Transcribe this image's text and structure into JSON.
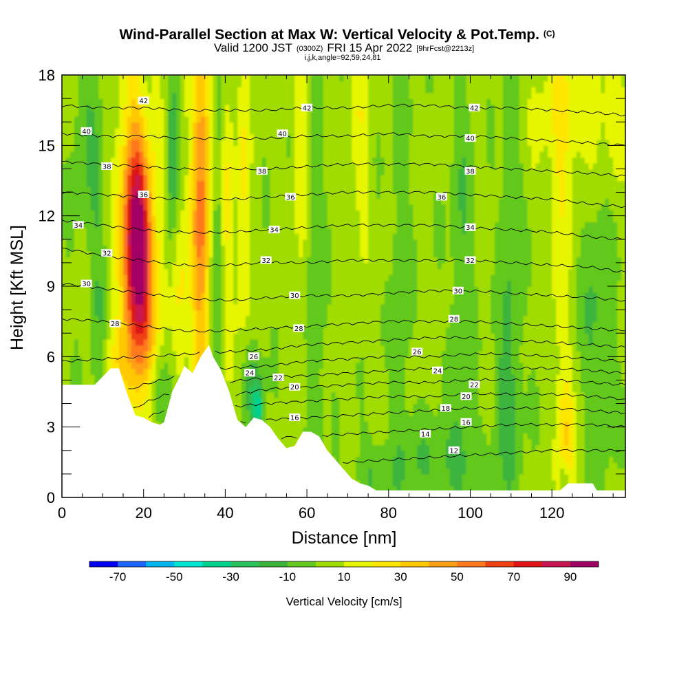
{
  "header": {
    "title": "Wind-Parallel Section at Max W: Vertical Velocity & Pot.Temp.",
    "title_unit": "(C)",
    "valid_pre": "Valid 1200 JST",
    "valid_utc": "(0300Z)",
    "valid_date": "FRI 15 Apr 2022",
    "forecast": "[9hrFcst@2213z]",
    "grid_info": "i,j,k,angle=92,59,24,81"
  },
  "chart_data": {
    "type": "heatmap",
    "xlabel": "Distance [nm]",
    "ylabel": "Height [Kft MSL]",
    "xlim": [
      0,
      138
    ],
    "ylim": [
      0,
      18
    ],
    "x_ticks": [
      0,
      20,
      40,
      60,
      80,
      100,
      120
    ],
    "y_ticks": [
      0,
      3,
      6,
      9,
      12,
      15,
      18
    ],
    "colorbar": {
      "title": "Vertical Velocity [cm/s]",
      "levels": [
        -80,
        -70,
        -60,
        -50,
        -40,
        -30,
        -20,
        -10,
        0,
        10,
        20,
        30,
        40,
        50,
        60,
        70,
        80,
        90,
        100
      ],
      "colors": [
        "#0000ee",
        "#1e64ff",
        "#00b4f0",
        "#00e6d2",
        "#00d28c",
        "#28c35a",
        "#3cb43c",
        "#64c81e",
        "#a0dc00",
        "#e6f500",
        "#ffe600",
        "#ffc800",
        "#ffa014",
        "#ff781e",
        "#f04014",
        "#dc1414",
        "#c81450",
        "#a00064"
      ],
      "tick_labels": [
        "-70",
        "-50",
        "-30",
        "-10",
        "10",
        "30",
        "50",
        "70",
        "90"
      ],
      "tick_values": [
        -70,
        -50,
        -30,
        -10,
        10,
        30,
        50,
        70,
        90
      ]
    },
    "terrain_top_kft": [
      [
        0,
        4.8
      ],
      [
        6,
        4.8
      ],
      [
        8,
        4.8
      ],
      [
        12,
        5.5
      ],
      [
        14,
        5.5
      ],
      [
        16,
        4.4
      ],
      [
        18,
        3.5
      ],
      [
        20,
        3.4
      ],
      [
        22,
        3.2
      ],
      [
        24,
        3.1
      ],
      [
        25,
        3.2
      ],
      [
        27,
        4.5
      ],
      [
        29,
        5.2
      ],
      [
        30,
        5.6
      ],
      [
        32,
        5.3
      ],
      [
        34,
        6.0
      ],
      [
        36,
        6.5
      ],
      [
        37,
        6.0
      ],
      [
        39,
        5.4
      ],
      [
        41,
        4.5
      ],
      [
        43,
        3.3
      ],
      [
        45,
        3.0
      ],
      [
        47,
        3.4
      ],
      [
        49,
        3.3
      ],
      [
        51,
        3.0
      ],
      [
        53,
        2.5
      ],
      [
        55,
        2.1
      ],
      [
        57,
        2.2
      ],
      [
        59,
        2.8
      ],
      [
        61,
        2.8
      ],
      [
        63,
        2.6
      ],
      [
        65,
        2.0
      ],
      [
        67,
        1.6
      ],
      [
        69,
        1.2
      ],
      [
        71,
        0.8
      ],
      [
        73,
        0.6
      ],
      [
        75,
        0.5
      ],
      [
        77,
        0.3
      ],
      [
        120,
        0.3
      ],
      [
        122,
        0.3
      ],
      [
        124,
        0.6
      ],
      [
        126,
        0.6
      ],
      [
        128,
        0.6
      ],
      [
        130,
        0.6
      ],
      [
        131,
        0.3
      ],
      [
        138,
        0.3
      ]
    ],
    "theta_levels_c": [
      12,
      14,
      16,
      18,
      20,
      22,
      24,
      26,
      28,
      30,
      32,
      34,
      36,
      38,
      40,
      42
    ],
    "theta_height_kft": {
      "12": [
        0.0,
        0.0,
        0.2,
        0.5,
        0.9,
        1.2,
        1.4,
        1.5,
        1.6,
        1.7,
        1.8,
        1.9,
        2.0,
        2.0,
        2.0
      ],
      "14": [
        0.0,
        0.2,
        0.9,
        1.6,
        2.2,
        2.5,
        2.6,
        2.7,
        2.8,
        2.9,
        3.0,
        3.1,
        3.1,
        3.1,
        3.0
      ],
      "16": [
        0.0,
        0.6,
        1.7,
        2.6,
        3.1,
        3.3,
        3.4,
        3.5,
        3.6,
        3.7,
        3.8,
        3.8,
        3.8,
        3.7,
        3.6
      ],
      "18": [
        0.0,
        1.2,
        2.5,
        3.3,
        3.8,
        4.0,
        4.1,
        4.2,
        4.3,
        4.3,
        4.4,
        4.4,
        4.4,
        4.3,
        4.2
      ],
      "20": [
        1.0,
        2.0,
        3.3,
        4.0,
        4.3,
        4.6,
        4.7,
        4.8,
        4.9,
        4.9,
        5.0,
        5.0,
        5.0,
        4.9,
        4.8
      ],
      "22": [
        2.5,
        3.0,
        4.0,
        4.6,
        4.9,
        5.1,
        5.2,
        5.3,
        5.4,
        5.5,
        5.5,
        5.5,
        5.5,
        5.4,
        5.3
      ],
      "24": [
        4.0,
        4.2,
        4.8,
        5.2,
        5.5,
        5.6,
        5.8,
        5.9,
        6.0,
        6.0,
        6.1,
        6.1,
        6.0,
        5.9,
        5.8
      ],
      "26": [
        5.8,
        5.9,
        6.0,
        6.1,
        6.2,
        6.3,
        6.5,
        6.6,
        6.7,
        6.8,
        6.8,
        6.7,
        6.6,
        6.5,
        6.4
      ],
      "28": [
        7.6,
        7.5,
        7.3,
        7.1,
        7.1,
        7.2,
        7.3,
        7.4,
        7.5,
        7.5,
        7.5,
        7.4,
        7.3,
        7.2,
        7.1
      ],
      "30": [
        9.1,
        8.9,
        8.7,
        8.5,
        8.4,
        8.5,
        8.6,
        8.6,
        8.7,
        8.8,
        8.8,
        8.7,
        8.6,
        8.5,
        8.4
      ],
      "32": [
        10.6,
        10.3,
        10.1,
        9.9,
        9.9,
        10.0,
        10.0,
        10.1,
        10.1,
        10.1,
        10.1,
        10.0,
        9.9,
        9.8,
        9.6
      ],
      "34": [
        11.8,
        11.6,
        11.4,
        11.3,
        11.3,
        11.4,
        11.5,
        11.6,
        11.6,
        11.6,
        11.5,
        11.4,
        11.3,
        11.1,
        11.0
      ],
      "36": [
        13.0,
        12.9,
        12.8,
        12.7,
        12.7,
        12.8,
        12.9,
        13.0,
        13.0,
        13.0,
        12.9,
        12.8,
        12.7,
        12.5,
        12.4
      ],
      "38": [
        14.3,
        14.2,
        14.1,
        14.0,
        14.0,
        14.0,
        14.1,
        14.2,
        14.2,
        14.2,
        14.1,
        14.0,
        13.9,
        13.8,
        13.7
      ],
      "40": [
        15.5,
        15.4,
        15.4,
        15.3,
        15.3,
        15.3,
        15.4,
        15.4,
        15.5,
        15.4,
        15.4,
        15.3,
        15.2,
        15.1,
        15.0
      ],
      "42": [
        16.7,
        16.6,
        16.6,
        16.5,
        16.5,
        16.5,
        16.6,
        16.6,
        16.7,
        16.7,
        16.6,
        16.6,
        16.5,
        16.4,
        16.3
      ]
    },
    "theta_x_nm": [
      0,
      10,
      20,
      30,
      40,
      50,
      60,
      70,
      80,
      90,
      100,
      110,
      120,
      130,
      138
    ],
    "theta_labels": [
      {
        "text": "42",
        "x": 20,
        "y": 16.9
      },
      {
        "text": "42",
        "x": 60,
        "y": 16.6
      },
      {
        "text": "42",
        "x": 101,
        "y": 16.6
      },
      {
        "text": "40",
        "x": 6,
        "y": 15.6
      },
      {
        "text": "40",
        "x": 54,
        "y": 15.5
      },
      {
        "text": "40",
        "x": 100,
        "y": 15.3
      },
      {
        "text": "38",
        "x": 11,
        "y": 14.1
      },
      {
        "text": "38",
        "x": 49,
        "y": 13.9
      },
      {
        "text": "38",
        "x": 100,
        "y": 13.9
      },
      {
        "text": "36",
        "x": 20,
        "y": 12.9
      },
      {
        "text": "36",
        "x": 56,
        "y": 12.8
      },
      {
        "text": "36",
        "x": 93,
        "y": 12.8
      },
      {
        "text": "34",
        "x": 4,
        "y": 11.6
      },
      {
        "text": "34",
        "x": 52,
        "y": 11.4
      },
      {
        "text": "34",
        "x": 100,
        "y": 11.5
      },
      {
        "text": "32",
        "x": 11,
        "y": 10.4
      },
      {
        "text": "32",
        "x": 50,
        "y": 10.1
      },
      {
        "text": "32",
        "x": 100,
        "y": 10.1
      },
      {
        "text": "30",
        "x": 6,
        "y": 9.1
      },
      {
        "text": "30",
        "x": 57,
        "y": 8.6
      },
      {
        "text": "30",
        "x": 97,
        "y": 8.8
      },
      {
        "text": "28",
        "x": 13,
        "y": 7.4
      },
      {
        "text": "28",
        "x": 58,
        "y": 7.2
      },
      {
        "text": "28",
        "x": 96,
        "y": 7.6
      },
      {
        "text": "26",
        "x": 47,
        "y": 6.0
      },
      {
        "text": "26",
        "x": 87,
        "y": 6.2
      },
      {
        "text": "24",
        "x": 46,
        "y": 5.3
      },
      {
        "text": "24",
        "x": 92,
        "y": 5.4
      },
      {
        "text": "22",
        "x": 53,
        "y": 5.1
      },
      {
        "text": "22",
        "x": 101,
        "y": 4.8
      },
      {
        "text": "20",
        "x": 57,
        "y": 4.7
      },
      {
        "text": "20",
        "x": 99,
        "y": 4.3
      },
      {
        "text": "18",
        "x": 94,
        "y": 3.8
      },
      {
        "text": "16",
        "x": 57,
        "y": 3.4
      },
      {
        "text": "16",
        "x": 99,
        "y": 3.2
      },
      {
        "text": "14",
        "x": 89,
        "y": 2.7
      },
      {
        "text": "12",
        "x": 96,
        "y": 2.0
      }
    ],
    "velocity_features": [
      {
        "x": 18.5,
        "y": 10.8,
        "sx": 2.2,
        "sy": 2.6,
        "v": 72
      },
      {
        "x": 18.5,
        "y": 12.0,
        "sx": 3.5,
        "sy": 5.5,
        "v": 35
      },
      {
        "x": 20.0,
        "y": 7.0,
        "sx": 3.0,
        "sy": 2.5,
        "v": 20
      },
      {
        "x": 33.5,
        "y": 11.0,
        "sx": 1.6,
        "sy": 7.0,
        "v": 32
      },
      {
        "x": 35.0,
        "y": 14.0,
        "sx": 1.6,
        "sy": 4.5,
        "v": 25
      },
      {
        "x": 29.0,
        "y": 9.0,
        "sx": 1.5,
        "sy": 3.0,
        "v": 18
      },
      {
        "x": 38.0,
        "y": 10.0,
        "sx": 1.2,
        "sy": 8.0,
        "v": -15
      },
      {
        "x": 44.5,
        "y": 12.0,
        "sx": 1.2,
        "sy": 5.0,
        "v": 18
      },
      {
        "x": 40.5,
        "y": 12.0,
        "sx": 1.2,
        "sy": 5.0,
        "v": 18
      },
      {
        "x": 48.0,
        "y": 3.8,
        "sx": 1.0,
        "sy": 0.9,
        "v": -35
      },
      {
        "x": 46.0,
        "y": 5.0,
        "sx": 2.0,
        "sy": 1.5,
        "v": -15
      },
      {
        "x": 27.0,
        "y": 14.5,
        "sx": 1.2,
        "sy": 3.5,
        "v": -20
      },
      {
        "x": 23.5,
        "y": 4.5,
        "sx": 2.5,
        "sy": 1.2,
        "v": -15
      },
      {
        "x": 13.0,
        "y": 5.8,
        "sx": 2.5,
        "sy": 1.0,
        "v": 15
      },
      {
        "x": 58.5,
        "y": 15.0,
        "sx": 1.3,
        "sy": 5.0,
        "v": 14
      },
      {
        "x": 73.0,
        "y": 15.5,
        "sx": 1.5,
        "sy": 4.0,
        "v": 14
      },
      {
        "x": 62.0,
        "y": 8.0,
        "sx": 1.5,
        "sy": 8.0,
        "v": -12
      },
      {
        "x": 83.0,
        "y": 10.0,
        "sx": 1.5,
        "sy": 7.0,
        "v": -12
      },
      {
        "x": 98.0,
        "y": 8.0,
        "sx": 2.0,
        "sy": 8.0,
        "v": -13
      },
      {
        "x": 110.0,
        "y": 9.0,
        "sx": 2.0,
        "sy": 9.0,
        "v": -13
      },
      {
        "x": 131.0,
        "y": 8.0,
        "sx": 3.0,
        "sy": 5.0,
        "v": -13
      },
      {
        "x": 122.0,
        "y": 11.0,
        "sx": 1.5,
        "sy": 5.0,
        "v": 14
      },
      {
        "x": 128.0,
        "y": 16.5,
        "sx": 9.0,
        "sy": 2.5,
        "v": 16
      },
      {
        "x": 123.5,
        "y": 1.5,
        "sx": 1.3,
        "sy": 3.0,
        "v": 30
      },
      {
        "x": 123.0,
        "y": 0.6,
        "sx": 0.8,
        "sy": 0.8,
        "v": -30
      },
      {
        "x": 92.0,
        "y": 1.5,
        "sx": 8.0,
        "sy": 1.3,
        "v": -12
      },
      {
        "x": 76.0,
        "y": 1.0,
        "sx": 3.0,
        "sy": 1.0,
        "v": -12
      },
      {
        "x": 108.0,
        "y": 4.0,
        "sx": 2.0,
        "sy": 2.0,
        "v": -11
      },
      {
        "x": 6.0,
        "y": 15.5,
        "sx": 2.5,
        "sy": 3.0,
        "v": -12
      },
      {
        "x": 9.0,
        "y": 9.0,
        "sx": 1.5,
        "sy": 4.5,
        "v": -12
      },
      {
        "x": 21.0,
        "y": 16.0,
        "sx": 1.3,
        "sy": 2.5,
        "v": -10
      }
    ]
  }
}
